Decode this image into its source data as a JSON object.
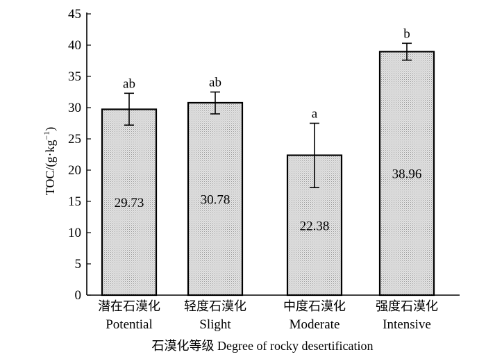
{
  "chart_data": {
    "type": "bar",
    "title": "",
    "ylabel_main": "TOC/(g·kg",
    "ylabel_sup": "−1",
    "ylabel_close": ")",
    "xlabel": "石漠化等级 Degree of rocky desertification",
    "ylim": [
      0,
      45
    ],
    "yticks": [
      0,
      5,
      10,
      15,
      20,
      25,
      30,
      35,
      40,
      45
    ],
    "ytick_labels": [
      "0",
      "5",
      "10",
      "15",
      "20",
      "25",
      "30",
      "35",
      "40",
      "45"
    ],
    "categories_cn": [
      "潜在石漠化",
      "轻度石漠化",
      "中度石漠化",
      "强度石漠化"
    ],
    "categories_en": [
      "Potential",
      "Slight",
      "Moderate",
      "Intensive"
    ],
    "values": [
      29.73,
      30.78,
      22.38,
      38.96
    ],
    "value_labels": [
      "29.73",
      "30.78",
      "22.38",
      "38.96"
    ],
    "error_low": [
      27.2,
      29.0,
      17.2,
      37.6
    ],
    "error_high": [
      32.3,
      32.5,
      27.5,
      40.3
    ],
    "significance": [
      "ab",
      "ab",
      "a",
      "b"
    ]
  },
  "colors": {
    "bar_fill": "#e6e6e6",
    "hatch": "#9a9a9a",
    "axis": "#000000"
  }
}
